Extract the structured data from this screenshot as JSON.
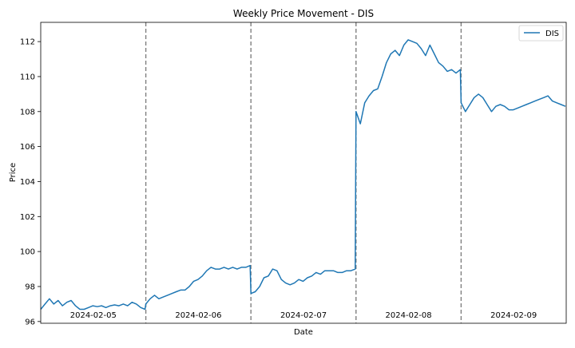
{
  "chart_data": {
    "type": "line",
    "title": "Weekly Price Movement - DIS",
    "xlabel": "Date",
    "ylabel": "Price",
    "ylim": [
      95.9,
      113.1
    ],
    "yticks": [
      96,
      98,
      100,
      102,
      104,
      106,
      108,
      110,
      112
    ],
    "y_tick_labels": [
      "96",
      "98",
      "100",
      "102",
      "104",
      "106",
      "108",
      "110",
      "112"
    ],
    "grid": false,
    "legend": {
      "placement": "top-right",
      "entries": [
        "DIS"
      ]
    },
    "day_labels": [
      "2024-02-05",
      "2024-02-06",
      "2024-02-07",
      "2024-02-08",
      "2024-02-09"
    ],
    "day_separators": "dashed vertical lines between trading days",
    "series": [
      {
        "name": "DIS",
        "color": "#1f77b4",
        "days": [
          [
            96.7,
            97.0,
            97.3,
            97.0,
            97.2,
            96.9,
            97.1,
            97.2,
            96.9,
            96.7,
            96.7,
            96.8,
            96.9,
            96.85,
            96.9,
            96.8,
            96.9,
            96.95,
            96.9,
            97.0,
            96.9,
            97.1,
            97.0,
            96.8,
            96.7
          ],
          [
            97.0,
            97.3,
            97.5,
            97.3,
            97.4,
            97.5,
            97.6,
            97.7,
            97.8,
            97.8,
            98.0,
            98.3,
            98.4,
            98.6,
            98.9,
            99.1,
            99.0,
            99.0,
            99.1,
            99.0,
            99.1,
            99.0,
            99.1,
            99.1,
            99.2
          ],
          [
            97.6,
            97.7,
            98.0,
            98.5,
            98.6,
            99.0,
            98.9,
            98.4,
            98.2,
            98.1,
            98.2,
            98.4,
            98.3,
            98.5,
            98.6,
            98.8,
            98.7,
            98.9,
            98.9,
            98.9,
            98.8,
            98.8,
            98.9,
            98.9,
            99.0
          ],
          [
            108.0,
            107.3,
            108.5,
            108.9,
            109.2,
            109.3,
            110.0,
            110.8,
            111.3,
            111.5,
            111.2,
            111.8,
            112.1,
            112.0,
            111.9,
            111.6,
            111.2,
            111.8,
            111.3,
            110.8,
            110.6,
            110.3,
            110.4,
            110.2,
            110.4
          ],
          [
            108.5,
            108.0,
            108.4,
            108.8,
            109.0,
            108.8,
            108.4,
            108.0,
            108.3,
            108.4,
            108.3,
            108.1,
            108.1,
            108.2,
            108.3,
            108.4,
            108.5,
            108.6,
            108.7,
            108.8,
            108.9,
            108.6,
            108.5,
            108.4,
            108.3
          ]
        ]
      }
    ]
  }
}
